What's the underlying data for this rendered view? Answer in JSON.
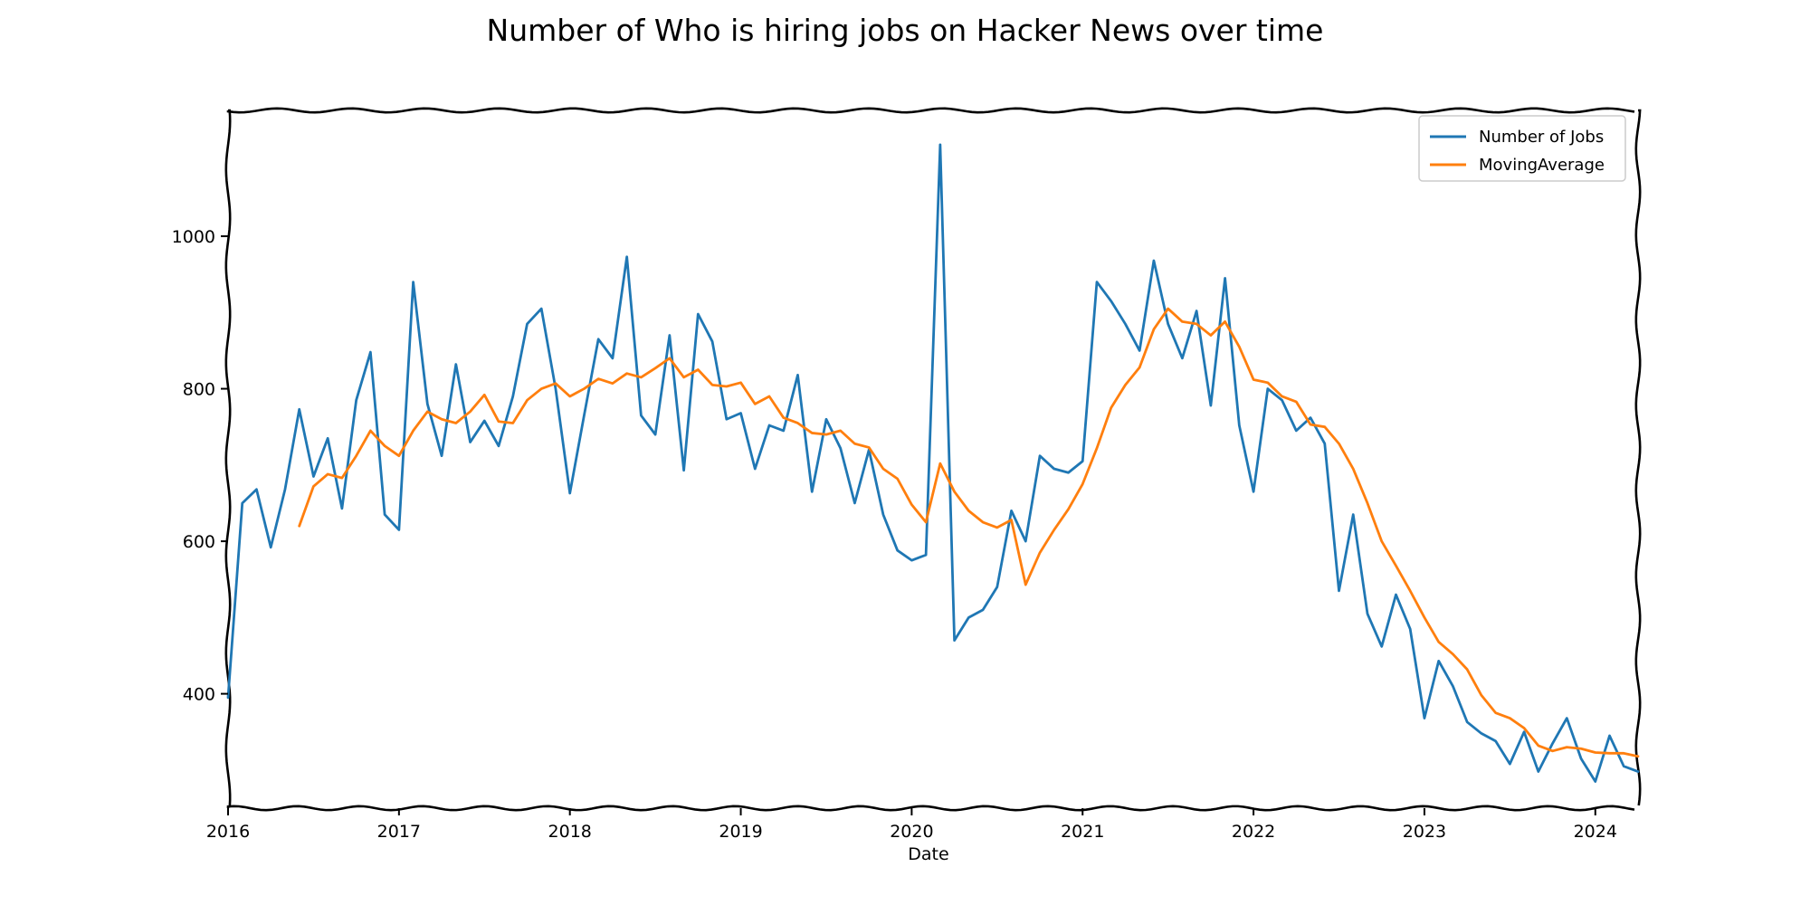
{
  "chart_data": {
    "type": "line",
    "title": "Number of Who is hiring jobs on Hacker News over time",
    "xlabel": "Date",
    "ylabel": "",
    "x_axis_type": "date",
    "xlim": [
      "2016-01-01",
      "2024-04-01"
    ],
    "ylim": [
      250,
      1165
    ],
    "x_ticks": [
      "2016",
      "2017",
      "2018",
      "2019",
      "2020",
      "2021",
      "2022",
      "2023",
      "2024"
    ],
    "y_ticks": [
      400,
      600,
      800,
      1000
    ],
    "grid": false,
    "legend": {
      "position": "top-right"
    },
    "colors": {
      "Number of Jobs": "#1f77b4",
      "MovingAverage": "#ff7f0e"
    },
    "series": [
      {
        "name": "Number of Jobs",
        "color": "#1f77b4",
        "points": [
          [
            "2016-01-01",
            395
          ],
          [
            "2016-02-01",
            650
          ],
          [
            "2016-03-01",
            668
          ],
          [
            "2016-04-01",
            592
          ],
          [
            "2016-05-01",
            668
          ],
          [
            "2016-06-01",
            773
          ],
          [
            "2016-07-01",
            685
          ],
          [
            "2016-08-01",
            735
          ],
          [
            "2016-09-01",
            643
          ],
          [
            "2016-10-01",
            785
          ],
          [
            "2016-11-01",
            848
          ],
          [
            "2016-12-01",
            635
          ],
          [
            "2017-01-01",
            615
          ],
          [
            "2017-02-01",
            940
          ],
          [
            "2017-03-01",
            780
          ],
          [
            "2017-04-01",
            712
          ],
          [
            "2017-05-01",
            832
          ],
          [
            "2017-06-01",
            730
          ],
          [
            "2017-07-01",
            758
          ],
          [
            "2017-08-01",
            725
          ],
          [
            "2017-09-01",
            790
          ],
          [
            "2017-10-01",
            885
          ],
          [
            "2017-11-01",
            905
          ],
          [
            "2017-12-01",
            800
          ],
          [
            "2018-01-01",
            663
          ],
          [
            "2018-02-01",
            765
          ],
          [
            "2018-03-01",
            865
          ],
          [
            "2018-04-01",
            840
          ],
          [
            "2018-05-01",
            973
          ],
          [
            "2018-06-01",
            765
          ],
          [
            "2018-07-01",
            740
          ],
          [
            "2018-08-01",
            870
          ],
          [
            "2018-09-01",
            693
          ],
          [
            "2018-10-01",
            898
          ],
          [
            "2018-11-01",
            862
          ],
          [
            "2018-12-01",
            760
          ],
          [
            "2019-01-01",
            768
          ],
          [
            "2019-02-01",
            695
          ],
          [
            "2019-03-01",
            752
          ],
          [
            "2019-04-01",
            745
          ],
          [
            "2019-05-01",
            818
          ],
          [
            "2019-06-01",
            665
          ],
          [
            "2019-07-01",
            760
          ],
          [
            "2019-08-01",
            722
          ],
          [
            "2019-09-01",
            650
          ],
          [
            "2019-10-01",
            720
          ],
          [
            "2019-11-01",
            635
          ],
          [
            "2019-12-01",
            588
          ],
          [
            "2020-01-01",
            575
          ],
          [
            "2020-02-01",
            582
          ],
          [
            "2020-03-01",
            1120
          ],
          [
            "2020-04-01",
            470
          ],
          [
            "2020-05-01",
            500
          ],
          [
            "2020-06-01",
            510
          ],
          [
            "2020-07-01",
            540
          ],
          [
            "2020-08-01",
            640
          ],
          [
            "2020-09-01",
            600
          ],
          [
            "2020-10-01",
            712
          ],
          [
            "2020-11-01",
            695
          ],
          [
            "2020-12-01",
            690
          ],
          [
            "2021-01-01",
            705
          ],
          [
            "2021-02-01",
            940
          ],
          [
            "2021-03-01",
            915
          ],
          [
            "2021-04-01",
            885
          ],
          [
            "2021-05-01",
            850
          ],
          [
            "2021-06-01",
            968
          ],
          [
            "2021-07-01",
            885
          ],
          [
            "2021-08-01",
            840
          ],
          [
            "2021-09-01",
            902
          ],
          [
            "2021-10-01",
            778
          ],
          [
            "2021-11-01",
            945
          ],
          [
            "2021-12-01",
            752
          ],
          [
            "2022-01-01",
            665
          ],
          [
            "2022-02-01",
            800
          ],
          [
            "2022-03-01",
            785
          ],
          [
            "2022-04-01",
            745
          ],
          [
            "2022-05-01",
            762
          ],
          [
            "2022-06-01",
            728
          ],
          [
            "2022-07-01",
            535
          ],
          [
            "2022-08-01",
            635
          ],
          [
            "2022-09-01",
            505
          ],
          [
            "2022-10-01",
            462
          ],
          [
            "2022-11-01",
            530
          ],
          [
            "2022-12-01",
            485
          ],
          [
            "2023-01-01",
            368
          ],
          [
            "2023-02-01",
            443
          ],
          [
            "2023-03-01",
            410
          ],
          [
            "2023-04-01",
            363
          ],
          [
            "2023-05-01",
            348
          ],
          [
            "2023-06-01",
            338
          ],
          [
            "2023-07-01",
            308
          ],
          [
            "2023-08-01",
            350
          ],
          [
            "2023-09-01",
            298
          ],
          [
            "2023-10-01",
            335
          ],
          [
            "2023-11-01",
            368
          ],
          [
            "2023-12-01",
            315
          ],
          [
            "2024-01-01",
            285
          ],
          [
            "2024-02-01",
            345
          ],
          [
            "2024-03-01",
            305
          ],
          [
            "2024-04-01",
            298
          ]
        ]
      },
      {
        "name": "MovingAverage",
        "color": "#ff7f0e",
        "points": [
          [
            "2016-06-01",
            620
          ],
          [
            "2016-07-01",
            672
          ],
          [
            "2016-08-01",
            688
          ],
          [
            "2016-09-01",
            683
          ],
          [
            "2016-10-01",
            712
          ],
          [
            "2016-11-01",
            745
          ],
          [
            "2016-12-01",
            725
          ],
          [
            "2017-01-01",
            712
          ],
          [
            "2017-02-01",
            745
          ],
          [
            "2017-03-01",
            770
          ],
          [
            "2017-04-01",
            760
          ],
          [
            "2017-05-01",
            755
          ],
          [
            "2017-06-01",
            770
          ],
          [
            "2017-07-01",
            792
          ],
          [
            "2017-08-01",
            757
          ],
          [
            "2017-09-01",
            755
          ],
          [
            "2017-10-01",
            785
          ],
          [
            "2017-11-01",
            800
          ],
          [
            "2017-12-01",
            807
          ],
          [
            "2018-01-01",
            790
          ],
          [
            "2018-02-01",
            800
          ],
          [
            "2018-03-01",
            813
          ],
          [
            "2018-04-01",
            807
          ],
          [
            "2018-05-01",
            820
          ],
          [
            "2018-06-01",
            815
          ],
          [
            "2018-07-01",
            827
          ],
          [
            "2018-08-01",
            840
          ],
          [
            "2018-09-01",
            815
          ],
          [
            "2018-10-01",
            825
          ],
          [
            "2018-11-01",
            805
          ],
          [
            "2018-12-01",
            803
          ],
          [
            "2019-01-01",
            808
          ],
          [
            "2019-02-01",
            780
          ],
          [
            "2019-03-01",
            790
          ],
          [
            "2019-04-01",
            762
          ],
          [
            "2019-05-01",
            755
          ],
          [
            "2019-06-01",
            742
          ],
          [
            "2019-07-01",
            740
          ],
          [
            "2019-08-01",
            745
          ],
          [
            "2019-09-01",
            728
          ],
          [
            "2019-10-01",
            723
          ],
          [
            "2019-11-01",
            695
          ],
          [
            "2019-12-01",
            682
          ],
          [
            "2020-01-01",
            648
          ],
          [
            "2020-02-01",
            625
          ],
          [
            "2020-03-01",
            702
          ],
          [
            "2020-04-01",
            665
          ],
          [
            "2020-05-01",
            640
          ],
          [
            "2020-06-01",
            625
          ],
          [
            "2020-07-01",
            618
          ],
          [
            "2020-08-01",
            628
          ],
          [
            "2020-09-01",
            543
          ],
          [
            "2020-10-01",
            585
          ],
          [
            "2020-11-01",
            615
          ],
          [
            "2020-12-01",
            642
          ],
          [
            "2021-01-01",
            675
          ],
          [
            "2021-02-01",
            722
          ],
          [
            "2021-03-01",
            775
          ],
          [
            "2021-04-01",
            805
          ],
          [
            "2021-05-01",
            828
          ],
          [
            "2021-06-01",
            878
          ],
          [
            "2021-07-01",
            905
          ],
          [
            "2021-08-01",
            888
          ],
          [
            "2021-09-01",
            885
          ],
          [
            "2021-10-01",
            870
          ],
          [
            "2021-11-01",
            888
          ],
          [
            "2021-12-01",
            855
          ],
          [
            "2022-01-01",
            812
          ],
          [
            "2022-02-01",
            808
          ],
          [
            "2022-03-01",
            790
          ],
          [
            "2022-04-01",
            783
          ],
          [
            "2022-05-01",
            753
          ],
          [
            "2022-06-01",
            750
          ],
          [
            "2022-07-01",
            728
          ],
          [
            "2022-08-01",
            695
          ],
          [
            "2022-09-01",
            650
          ],
          [
            "2022-10-01",
            600
          ],
          [
            "2022-11-01",
            568
          ],
          [
            "2022-12-01",
            535
          ],
          [
            "2023-01-01",
            500
          ],
          [
            "2023-02-01",
            468
          ],
          [
            "2023-03-01",
            452
          ],
          [
            "2023-04-01",
            432
          ],
          [
            "2023-05-01",
            398
          ],
          [
            "2023-06-01",
            375
          ],
          [
            "2023-07-01",
            368
          ],
          [
            "2023-08-01",
            355
          ],
          [
            "2023-09-01",
            332
          ],
          [
            "2023-10-01",
            325
          ],
          [
            "2023-11-01",
            330
          ],
          [
            "2023-12-01",
            328
          ],
          [
            "2024-01-01",
            323
          ],
          [
            "2024-02-01",
            322
          ],
          [
            "2024-03-01",
            322
          ],
          [
            "2024-04-01",
            318
          ]
        ]
      }
    ]
  }
}
